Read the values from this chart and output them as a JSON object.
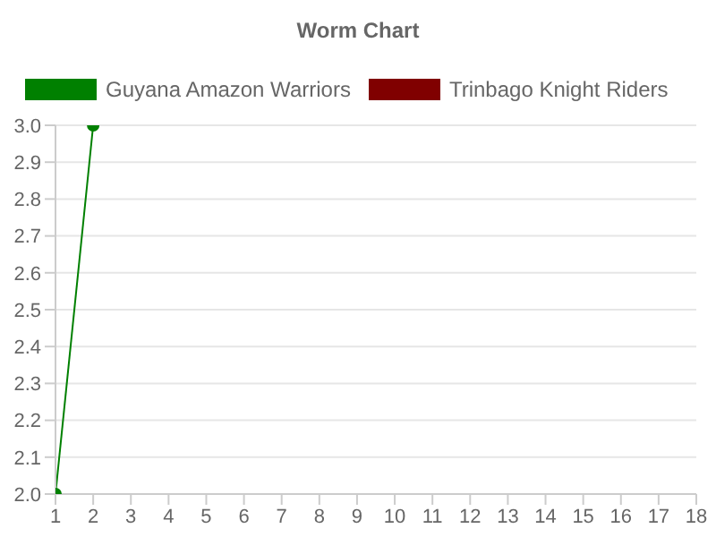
{
  "chart_data": {
    "type": "line",
    "title": "Worm Chart",
    "legend": "top",
    "grid": "y",
    "marker": "circle",
    "line_style": "solid",
    "xlim": [
      1,
      18
    ],
    "xticks": [
      1,
      2,
      3,
      4,
      5,
      6,
      7,
      8,
      9,
      10,
      11,
      12,
      13,
      14,
      15,
      16,
      17,
      18
    ],
    "ylim": [
      2,
      3
    ],
    "yticks": [
      {
        "value": 2,
        "label": "2.0"
      },
      {
        "value": 2.1,
        "label": "2.1"
      },
      {
        "value": 2.2,
        "label": "2.2"
      },
      {
        "value": 2.3,
        "label": "2.3"
      },
      {
        "value": 2.4,
        "label": "2.4"
      },
      {
        "value": 2.5,
        "label": "2.5"
      },
      {
        "value": 2.6,
        "label": "2.6"
      },
      {
        "value": 2.7,
        "label": "2.7"
      },
      {
        "value": 2.8,
        "label": "2.8"
      },
      {
        "value": 2.9,
        "label": "2.9"
      },
      {
        "value": 3,
        "label": "3.0"
      }
    ],
    "series": [
      {
        "name": "Guyana Amazon Warriors",
        "color": "#008000",
        "x": [
          1,
          2
        ],
        "values": [
          2,
          3
        ]
      },
      {
        "name": "Trinbago Knight Riders",
        "color": "#800000"
      }
    ]
  }
}
